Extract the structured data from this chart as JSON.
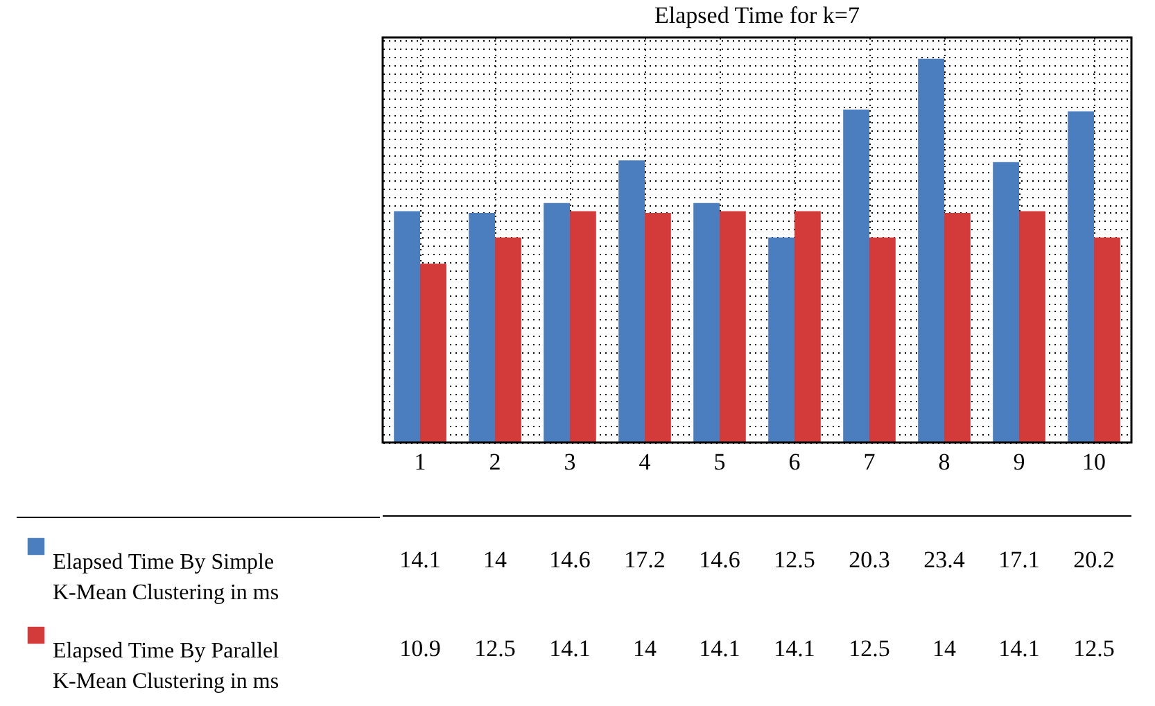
{
  "chart_data": {
    "type": "bar",
    "title": "Elapsed Time for k=7",
    "categories": [
      "1",
      "2",
      "3",
      "4",
      "5",
      "6",
      "7",
      "8",
      "9",
      "10"
    ],
    "series": [
      {
        "name": "Elapsed Time By Simple K-Mean Clustering in ms",
        "color": "#4a7ebf",
        "values": [
          14.1,
          14,
          14.6,
          17.2,
          14.6,
          12.5,
          20.3,
          23.4,
          17.1,
          20.2
        ]
      },
      {
        "name": "Elapsed Time By Parallel K-Mean Clustering in ms",
        "color": "#d33a3a",
        "values": [
          10.9,
          12.5,
          14.1,
          14,
          14.1,
          14.1,
          12.5,
          14,
          14.1,
          12.5
        ]
      }
    ],
    "ylim": [
      0,
      24.7
    ],
    "grid": true,
    "legend": "bottom",
    "data_labels": true
  }
}
